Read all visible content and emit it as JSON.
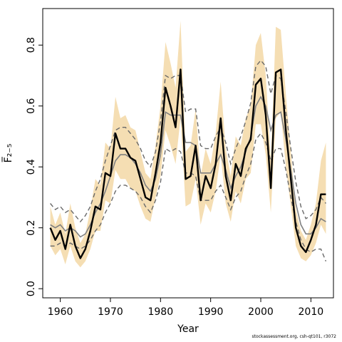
{
  "chart_data": {
    "type": "line",
    "xlabel": "Year",
    "ylabel": "F̅₂₋₅",
    "xlim": [
      1956.5,
      2014.5
    ],
    "ylim": [
      -0.03,
      0.92
    ],
    "xticks": [
      1960,
      1970,
      1980,
      1990,
      2000,
      2010
    ],
    "yticks": [
      0.0,
      0.2,
      0.4,
      0.6,
      0.8
    ],
    "ytick_labels": [
      "0.0",
      "0.2",
      "0.4",
      "0.6",
      "0.8"
    ],
    "colors": {
      "band": "#f5deb3",
      "estimate": "#000000",
      "comparison": "#808080",
      "comparison_interval": "#696969"
    },
    "x": [
      1958,
      1959,
      1960,
      1961,
      1962,
      1963,
      1964,
      1965,
      1966,
      1967,
      1968,
      1969,
      1970,
      1971,
      1972,
      1973,
      1974,
      1975,
      1976,
      1977,
      1978,
      1979,
      1980,
      1981,
      1982,
      1983,
      1984,
      1985,
      1986,
      1987,
      1988,
      1989,
      1990,
      1991,
      1992,
      1993,
      1994,
      1995,
      1996,
      1997,
      1998,
      1999,
      2000,
      2001,
      2002,
      2003,
      2004,
      2005,
      2006,
      2007,
      2008,
      2009,
      2010,
      2011,
      2012,
      2013
    ],
    "series": [
      {
        "role": "estimate",
        "values": [
          0.2,
          0.16,
          0.19,
          0.13,
          0.21,
          0.14,
          0.1,
          0.13,
          0.19,
          0.27,
          0.26,
          0.38,
          0.37,
          0.51,
          0.46,
          0.46,
          0.43,
          0.42,
          0.36,
          0.3,
          0.29,
          0.38,
          0.48,
          0.66,
          0.6,
          0.53,
          0.72,
          0.36,
          0.37,
          0.47,
          0.29,
          0.37,
          0.33,
          0.41,
          0.56,
          0.37,
          0.29,
          0.41,
          0.37,
          0.46,
          0.49,
          0.67,
          0.69,
          0.57,
          0.33,
          0.71,
          0.72,
          0.52,
          0.36,
          0.2,
          0.14,
          0.12,
          0.16,
          0.21,
          0.31,
          0.31
        ]
      },
      {
        "role": "upper",
        "values": [
          0.27,
          0.21,
          0.25,
          0.18,
          0.28,
          0.2,
          0.15,
          0.18,
          0.26,
          0.36,
          0.34,
          0.48,
          0.46,
          0.63,
          0.56,
          0.57,
          0.53,
          0.52,
          0.45,
          0.38,
          0.36,
          0.47,
          0.6,
          0.81,
          0.74,
          0.66,
          0.88,
          0.45,
          0.47,
          0.59,
          0.37,
          0.46,
          0.41,
          0.51,
          0.68,
          0.46,
          0.37,
          0.5,
          0.47,
          0.56,
          0.6,
          0.8,
          0.84,
          0.7,
          0.42,
          0.86,
          0.85,
          0.64,
          0.45,
          0.26,
          0.19,
          0.16,
          0.21,
          0.28,
          0.42,
          0.48
        ]
      },
      {
        "role": "lower",
        "values": [
          0.14,
          0.11,
          0.13,
          0.08,
          0.14,
          0.09,
          0.07,
          0.09,
          0.13,
          0.19,
          0.19,
          0.29,
          0.28,
          0.39,
          0.36,
          0.36,
          0.33,
          0.32,
          0.27,
          0.23,
          0.22,
          0.3,
          0.37,
          0.52,
          0.47,
          0.41,
          0.56,
          0.27,
          0.28,
          0.36,
          0.21,
          0.28,
          0.25,
          0.32,
          0.44,
          0.28,
          0.22,
          0.32,
          0.28,
          0.36,
          0.38,
          0.54,
          0.54,
          0.44,
          0.25,
          0.56,
          0.58,
          0.4,
          0.27,
          0.14,
          0.1,
          0.09,
          0.11,
          0.15,
          0.21,
          0.18
        ]
      },
      {
        "role": "comparison",
        "values": [
          0.21,
          0.2,
          0.21,
          0.19,
          0.2,
          0.19,
          0.17,
          0.18,
          0.21,
          0.25,
          0.28,
          0.32,
          0.37,
          0.42,
          0.44,
          0.44,
          0.43,
          0.41,
          0.38,
          0.34,
          0.32,
          0.36,
          0.44,
          0.58,
          0.57,
          0.57,
          0.57,
          0.48,
          0.48,
          0.47,
          0.38,
          0.38,
          0.38,
          0.41,
          0.44,
          0.39,
          0.33,
          0.37,
          0.4,
          0.45,
          0.5,
          0.6,
          0.63,
          0.6,
          0.52,
          0.57,
          0.58,
          0.49,
          0.39,
          0.28,
          0.21,
          0.18,
          0.18,
          0.2,
          0.23,
          0.22
        ]
      },
      {
        "role": "comparison_upper",
        "values": [
          0.28,
          0.26,
          0.27,
          0.25,
          0.26,
          0.24,
          0.22,
          0.24,
          0.27,
          0.32,
          0.36,
          0.42,
          0.47,
          0.52,
          0.53,
          0.53,
          0.51,
          0.49,
          0.46,
          0.42,
          0.4,
          0.45,
          0.55,
          0.7,
          0.69,
          0.7,
          0.7,
          0.58,
          0.59,
          0.59,
          0.47,
          0.46,
          0.46,
          0.5,
          0.53,
          0.48,
          0.41,
          0.46,
          0.5,
          0.55,
          0.61,
          0.73,
          0.75,
          0.73,
          0.64,
          0.7,
          0.69,
          0.58,
          0.46,
          0.35,
          0.27,
          0.23,
          0.24,
          0.26,
          0.3,
          0.28
        ]
      },
      {
        "role": "comparison_lower",
        "values": [
          0.14,
          0.14,
          0.15,
          0.14,
          0.15,
          0.14,
          0.13,
          0.14,
          0.16,
          0.19,
          0.21,
          0.25,
          0.28,
          0.32,
          0.34,
          0.34,
          0.33,
          0.32,
          0.3,
          0.27,
          0.25,
          0.29,
          0.35,
          0.46,
          0.45,
          0.46,
          0.45,
          0.38,
          0.38,
          0.37,
          0.29,
          0.29,
          0.29,
          0.32,
          0.34,
          0.3,
          0.26,
          0.3,
          0.32,
          0.37,
          0.41,
          0.49,
          0.51,
          0.48,
          0.42,
          0.46,
          0.46,
          0.39,
          0.3,
          0.22,
          0.16,
          0.13,
          0.12,
          0.13,
          0.13,
          0.09
        ]
      }
    ]
  },
  "footer": {
    "credit": "stockassessment.org, csh-qt101, r3072"
  }
}
